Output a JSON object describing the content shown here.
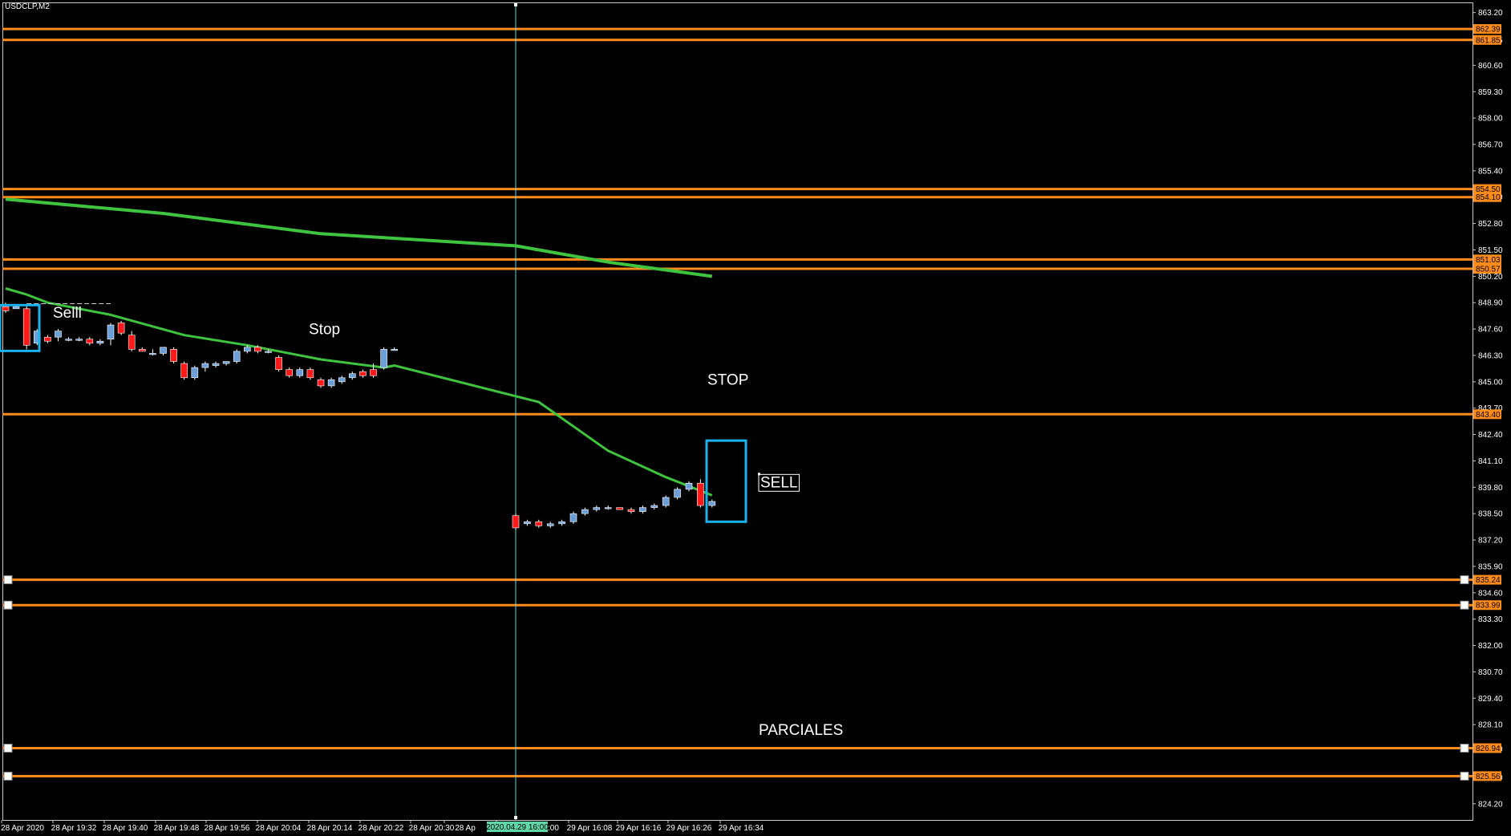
{
  "window": {
    "symbol_title": "USDCLP,M2"
  },
  "chart_data": {
    "type": "candlestick",
    "title": "USDCLP,M2",
    "colors": {
      "background": "#000000",
      "up_candle": "#6c9fd8",
      "down_candle": "#ff1a1a",
      "level_line": "#ff8c1a",
      "ma_line": "#3ec43e",
      "vline": "#5fd7d7",
      "box": "#1ab2ef",
      "text": "#ffffff",
      "date_highlight": "#5fd7a7"
    },
    "y_ticks": [
      "863.20",
      "861.85",
      "860.60",
      "859.30",
      "858.00",
      "856.70",
      "855.40",
      "854.10",
      "852.80",
      "851.50",
      "850.20",
      "848.90",
      "847.60",
      "846.30",
      "845.00",
      "843.70",
      "842.40",
      "841.10",
      "839.80",
      "838.50",
      "837.20",
      "835.90",
      "834.60",
      "833.30",
      "832.00",
      "830.70",
      "829.40",
      "828.10",
      "826.90",
      "825.50",
      "824.20"
    ],
    "ylim": [
      823.4,
      863.7
    ],
    "x_ticks": [
      "28 Apr 2020",
      "28 Apr 19:32",
      "28 Apr 19:40",
      "28 Apr 19:48",
      "28 Apr 19:56",
      "28 Apr 20:04",
      "28 Apr 20:14",
      "28 Apr 20:22",
      "28 Apr 20:30",
      "28 Ap",
      "2020.04.29 16:00",
      "29 Apr 16:08",
      "29 Apr 16:16",
      "29 Apr 16:26",
      "29 Apr 16:34"
    ],
    "x_tick_suffix": ":00",
    "crosshair_date": "2020.04.29 16:00",
    "levels": [
      {
        "value": 862.39,
        "label": "862.39",
        "handles": false
      },
      {
        "value": 861.85,
        "label": "861.85",
        "handles": false
      },
      {
        "value": 854.5,
        "label": "854.50",
        "handles": false
      },
      {
        "value": 854.1,
        "label": "854.10",
        "handles": false
      },
      {
        "value": 851.03,
        "label": "851.03",
        "handles": false
      },
      {
        "value": 850.57,
        "label": "850.57",
        "handles": false
      },
      {
        "value": 843.4,
        "label": "843.40",
        "handles": false
      },
      {
        "value": 835.24,
        "label": "835.24",
        "handles": true
      },
      {
        "value": 833.99,
        "label": "833.99",
        "handles": true
      },
      {
        "value": 826.94,
        "label": "826.94",
        "handles": true
      },
      {
        "value": 825.56,
        "label": "825.56",
        "handles": true
      }
    ],
    "candles": [
      {
        "o": 848.7,
        "h": 848.9,
        "l": 848.4,
        "c": 848.5
      },
      {
        "o": 848.6,
        "h": 848.8,
        "l": 848.6,
        "c": 848.7
      },
      {
        "o": 848.6,
        "h": 848.8,
        "l": 846.6,
        "c": 846.8
      },
      {
        "o": 846.9,
        "h": 847.6,
        "l": 846.8,
        "c": 847.5
      },
      {
        "o": 847.2,
        "h": 847.3,
        "l": 846.9,
        "c": 847.0
      },
      {
        "o": 847.2,
        "h": 847.6,
        "l": 847.0,
        "c": 847.5
      },
      {
        "o": 847.1,
        "h": 847.2,
        "l": 847.0,
        "c": 847.1
      },
      {
        "o": 847.1,
        "h": 847.2,
        "l": 847.0,
        "c": 847.1
      },
      {
        "o": 847.1,
        "h": 847.2,
        "l": 846.8,
        "c": 846.9
      },
      {
        "o": 846.9,
        "h": 847.1,
        "l": 846.8,
        "c": 847.0
      },
      {
        "o": 847.1,
        "h": 847.9,
        "l": 846.8,
        "c": 847.8
      },
      {
        "o": 847.9,
        "h": 848.0,
        "l": 847.3,
        "c": 847.4
      },
      {
        "o": 847.3,
        "h": 847.5,
        "l": 846.5,
        "c": 846.6
      },
      {
        "o": 846.6,
        "h": 846.7,
        "l": 846.5,
        "c": 846.5
      },
      {
        "o": 846.4,
        "h": 846.6,
        "l": 846.3,
        "c": 846.4
      },
      {
        "o": 846.4,
        "h": 846.7,
        "l": 846.3,
        "c": 846.7
      },
      {
        "o": 846.6,
        "h": 846.7,
        "l": 845.9,
        "c": 846.0
      },
      {
        "o": 845.9,
        "h": 846.0,
        "l": 845.1,
        "c": 845.2
      },
      {
        "o": 845.2,
        "h": 845.8,
        "l": 845.1,
        "c": 845.7
      },
      {
        "o": 845.7,
        "h": 846.0,
        "l": 845.5,
        "c": 845.9
      },
      {
        "o": 845.8,
        "h": 846.0,
        "l": 845.7,
        "c": 845.9
      },
      {
        "o": 845.9,
        "h": 846.0,
        "l": 845.8,
        "c": 846.0
      },
      {
        "o": 846.0,
        "h": 846.6,
        "l": 845.9,
        "c": 846.5
      },
      {
        "o": 846.5,
        "h": 846.8,
        "l": 846.4,
        "c": 846.7
      },
      {
        "o": 846.7,
        "h": 846.8,
        "l": 846.4,
        "c": 846.5
      },
      {
        "o": 846.5,
        "h": 846.6,
        "l": 846.4,
        "c": 846.5
      },
      {
        "o": 846.2,
        "h": 846.3,
        "l": 845.5,
        "c": 845.6
      },
      {
        "o": 845.6,
        "h": 845.7,
        "l": 845.2,
        "c": 845.3
      },
      {
        "o": 845.3,
        "h": 845.7,
        "l": 845.2,
        "c": 845.6
      },
      {
        "o": 845.6,
        "h": 845.7,
        "l": 845.1,
        "c": 845.2
      },
      {
        "o": 845.1,
        "h": 845.2,
        "l": 844.7,
        "c": 844.8
      },
      {
        "o": 844.8,
        "h": 845.2,
        "l": 844.7,
        "c": 845.1
      },
      {
        "o": 845.0,
        "h": 845.3,
        "l": 844.9,
        "c": 845.2
      },
      {
        "o": 845.2,
        "h": 845.5,
        "l": 845.1,
        "c": 845.4
      },
      {
        "o": 845.5,
        "h": 845.6,
        "l": 845.2,
        "c": 845.3
      },
      {
        "o": 845.6,
        "h": 845.9,
        "l": 845.2,
        "c": 845.3
      },
      {
        "o": 845.7,
        "h": 846.7,
        "l": 845.6,
        "c": 846.6
      },
      {
        "o": 846.6,
        "h": 846.7,
        "l": 846.6,
        "c": 846.6
      },
      {
        "o": 838.4,
        "h": 838.5,
        "l": 837.7,
        "c": 837.8
      },
      {
        "o": 838.0,
        "h": 838.2,
        "l": 837.9,
        "c": 838.1
      },
      {
        "o": 838.1,
        "h": 838.2,
        "l": 837.8,
        "c": 837.9
      },
      {
        "o": 837.9,
        "h": 838.1,
        "l": 837.8,
        "c": 838.0
      },
      {
        "o": 838.0,
        "h": 838.2,
        "l": 837.9,
        "c": 838.1
      },
      {
        "o": 838.1,
        "h": 838.6,
        "l": 838.0,
        "c": 838.5
      },
      {
        "o": 838.5,
        "h": 838.8,
        "l": 838.4,
        "c": 838.7
      },
      {
        "o": 838.7,
        "h": 838.9,
        "l": 838.6,
        "c": 838.8
      },
      {
        "o": 838.8,
        "h": 838.9,
        "l": 838.7,
        "c": 838.8
      },
      {
        "o": 838.8,
        "h": 838.8,
        "l": 838.7,
        "c": 838.7
      },
      {
        "o": 838.7,
        "h": 838.8,
        "l": 838.5,
        "c": 838.6
      },
      {
        "o": 838.6,
        "h": 838.9,
        "l": 838.5,
        "c": 838.8
      },
      {
        "o": 838.8,
        "h": 839.0,
        "l": 838.7,
        "c": 838.9
      },
      {
        "o": 838.9,
        "h": 839.4,
        "l": 838.8,
        "c": 839.3
      },
      {
        "o": 839.3,
        "h": 839.8,
        "l": 839.2,
        "c": 839.7
      },
      {
        "o": 839.7,
        "h": 840.1,
        "l": 839.6,
        "c": 840.0
      },
      {
        "o": 840.0,
        "h": 840.2,
        "l": 838.8,
        "c": 838.9
      },
      {
        "o": 838.9,
        "h": 839.2,
        "l": 838.8,
        "c": 839.1
      }
    ],
    "ma_fast": [
      [
        0,
        849.6
      ],
      [
        2,
        849.3
      ],
      [
        4,
        848.9
      ],
      [
        10,
        848.3
      ],
      [
        17,
        847.3
      ],
      [
        23,
        846.8
      ],
      [
        30,
        846.1
      ],
      [
        36,
        845.7
      ],
      [
        37,
        845.8
      ],
      [
        40,
        844.0
      ],
      [
        46,
        841.6
      ],
      [
        51,
        840.3
      ],
      [
        55,
        839.4
      ]
    ],
    "ma_slow": [
      [
        0,
        854.0
      ],
      [
        15,
        853.3
      ],
      [
        30,
        852.3
      ],
      [
        38,
        851.7
      ],
      [
        46,
        850.9
      ],
      [
        55,
        850.2
      ]
    ],
    "annotations": [
      {
        "text": "Selll"
      },
      {
        "text": "Stop"
      },
      {
        "text": "STOP"
      },
      {
        "text": "SELL"
      },
      {
        "text": "PARCIALES"
      }
    ]
  }
}
